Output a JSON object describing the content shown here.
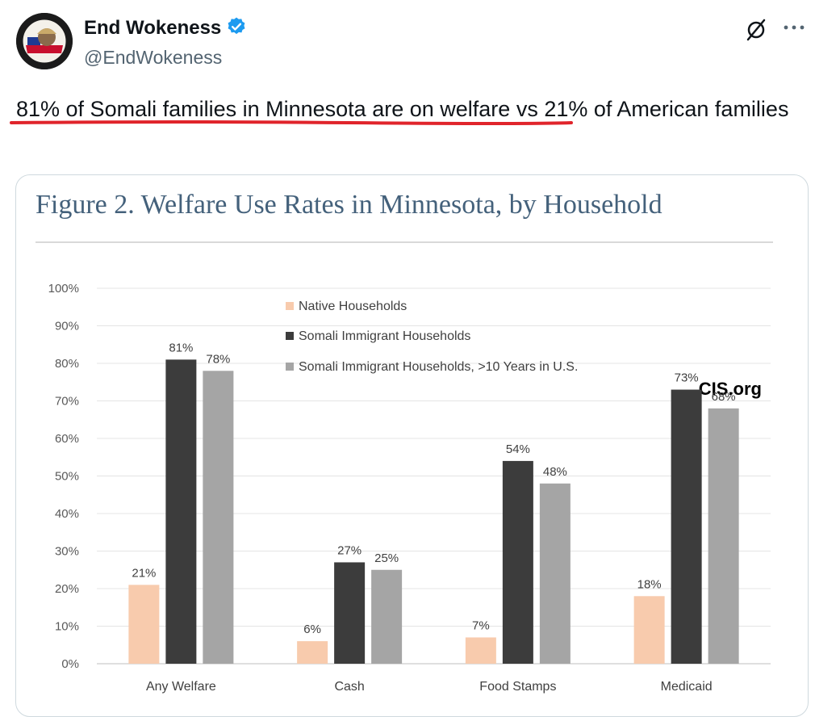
{
  "author": {
    "name": "End Wokeness",
    "handle": "@EndWokeness",
    "avatar_icon": "mascot-avatar",
    "verified_color": "#1d9bf0"
  },
  "tweet": {
    "text_highlight": "81% of Somali families in Minnesota are on welfare",
    "text_rest": " vs 21% of American families",
    "underline_color": "#e0242b"
  },
  "figure": {
    "title": "Figure 2. Welfare Use Rates in Minnesota, by Household",
    "source": "CIS.org"
  },
  "chart_data": {
    "type": "bar",
    "title": "Figure 2. Welfare Use Rates in Minnesota, by Household",
    "categories": [
      "Any Welfare",
      "Cash",
      "Food Stamps",
      "Medicaid"
    ],
    "series": [
      {
        "name": "Native Households",
        "values": [
          21,
          6,
          7,
          18
        ],
        "labels": [
          "21%",
          "6%",
          "7%",
          "18%"
        ],
        "color": "#f8cbad"
      },
      {
        "name": "Somali Immigrant Households",
        "values": [
          81,
          27,
          54,
          73
        ],
        "labels": [
          "81%",
          "27%",
          "54%",
          "73%"
        ],
        "color": "#3c3c3c"
      },
      {
        "name": "Somali Immigrant Households, >10 Years in U.S.",
        "values": [
          78,
          25,
          48,
          68
        ],
        "labels": [
          "78%",
          "25%",
          "48%",
          "68%"
        ],
        "color": "#a5a5a5"
      }
    ],
    "yticks": [
      "0%",
      "10%",
      "20%",
      "30%",
      "40%",
      "50%",
      "60%",
      "70%",
      "80%",
      "90%",
      "100%"
    ],
    "ylim": [
      0,
      100
    ],
    "xlabel": "",
    "ylabel": "",
    "grid": true,
    "legend": "top-center"
  }
}
